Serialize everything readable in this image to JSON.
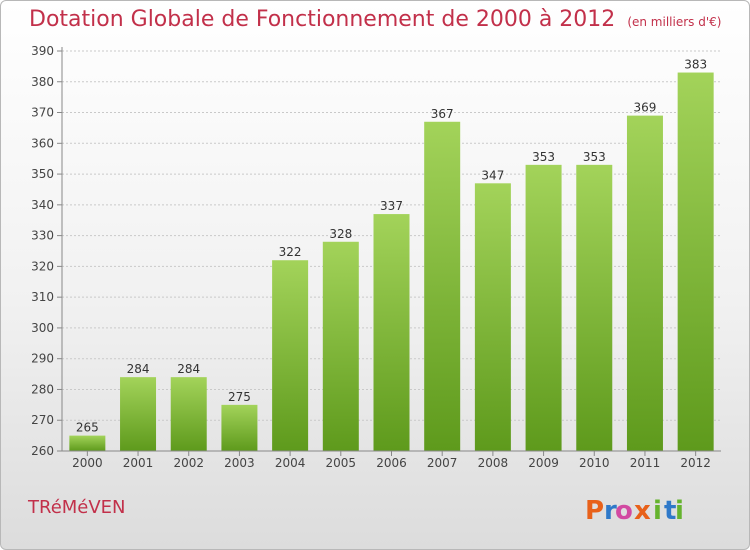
{
  "chart_data": {
    "type": "bar",
    "title": "Dotation Globale de Fonctionnement de 2000 à 2012",
    "unit": "(en milliers d'€)",
    "categories": [
      "2000",
      "2001",
      "2002",
      "2003",
      "2004",
      "2005",
      "2006",
      "2007",
      "2008",
      "2009",
      "2010",
      "2011",
      "2012"
    ],
    "values": [
      265,
      284,
      284,
      275,
      322,
      328,
      337,
      367,
      347,
      353,
      353,
      369,
      383
    ],
    "ylim": [
      260,
      390
    ],
    "yticks": [
      260,
      270,
      280,
      290,
      300,
      310,
      320,
      330,
      340,
      350,
      360,
      370,
      380,
      390
    ],
    "grid": true,
    "colors": {
      "bar_top": "#a3d35a",
      "bar_bottom": "#5e9a1c",
      "title": "#c2304a"
    }
  },
  "footer": {
    "commune": "TRéMéVEN",
    "logo": {
      "letters": [
        "P",
        "r",
        "o",
        "x",
        "i",
        "t",
        "i"
      ],
      "colors": [
        "#e8611a",
        "#2f79c9",
        "#d24aa2",
        "#e8611a",
        "#65b32e",
        "#2f79c9",
        "#65b32e"
      ]
    }
  }
}
